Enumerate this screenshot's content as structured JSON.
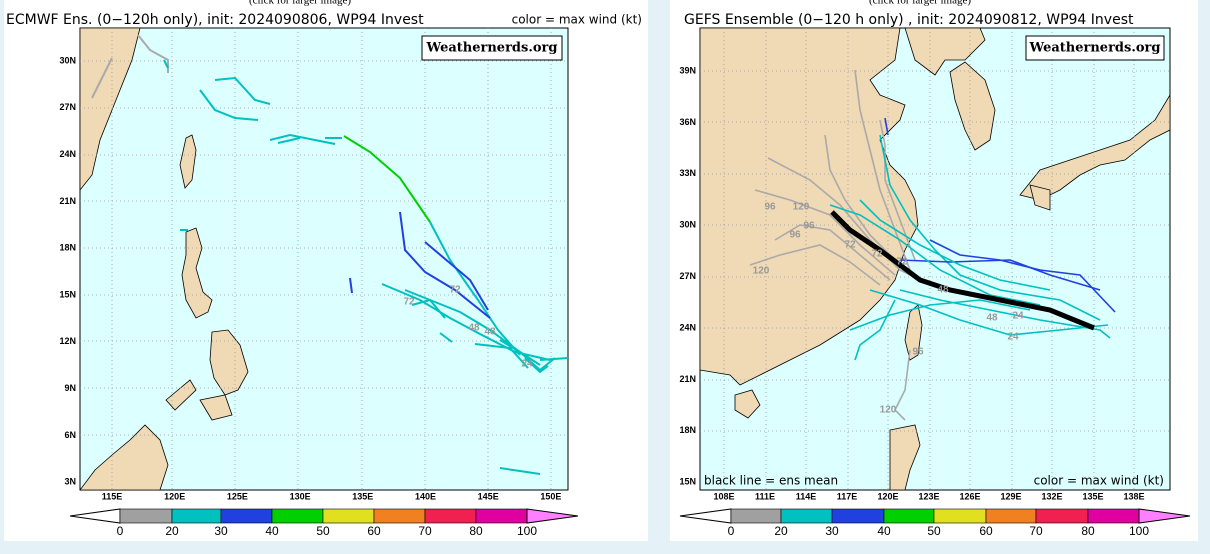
{
  "panels": [
    {
      "caption": "(click for larger image)",
      "title": "ECMWF Ens. (0−120h only), init: 2024090806, WP94 Invest",
      "color_note": "color = max wind (kt)",
      "watermark": "Weathernerds.org",
      "lat_labels": [
        "30N",
        "27N",
        "24N",
        "21N",
        "18N",
        "15N",
        "12N",
        "9N",
        "6N",
        "3N"
      ],
      "lon_labels": [
        "115E",
        "120E",
        "125E",
        "130E",
        "135E",
        "140E",
        "145E",
        "150E"
      ],
      "colorbar_labels": [
        "0",
        "20",
        "30",
        "40",
        "50",
        "60",
        "70",
        "80",
        "100"
      ],
      "track_labels": [
        "72",
        "72",
        "48",
        "48",
        "24"
      ]
    },
    {
      "caption": "(click for larger image)",
      "title": "GEFS Ensemble (0−120 h only) , init: 2024090812, WP94 Invest",
      "mean_note": "black line = ens mean",
      "color_note": "color = max wind (kt)",
      "watermark": "Weathernerds.org",
      "lat_labels": [
        "39N",
        "36N",
        "33N",
        "30N",
        "27N",
        "24N",
        "21N",
        "18N",
        "15N"
      ],
      "lon_labels": [
        "108E",
        "111E",
        "114E",
        "117E",
        "120E",
        "123E",
        "126E",
        "129E",
        "132E",
        "135E",
        "138E"
      ],
      "colorbar_labels": [
        "0",
        "20",
        "30",
        "40",
        "50",
        "60",
        "70",
        "80",
        "100"
      ],
      "track_labels": [
        "96",
        "120",
        "96",
        "96",
        "72",
        "72",
        "120",
        "72",
        "48",
        "48",
        "24",
        "24",
        "96",
        "120"
      ]
    }
  ]
}
